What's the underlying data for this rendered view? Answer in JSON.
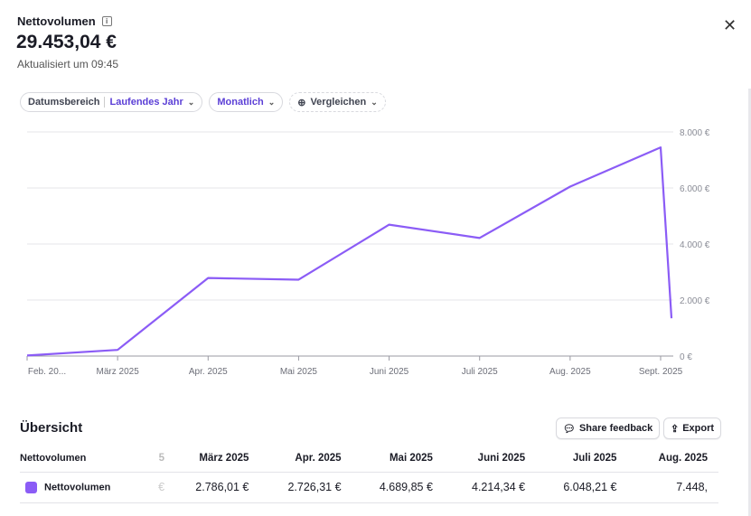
{
  "header": {
    "title": "Nettovolumen",
    "amount": "29.453,04 €",
    "updated": "Aktualisiert um 09:45",
    "close": "✕"
  },
  "filters": {
    "date_label": "Datumsbereich",
    "date_value": "Laufendes Jahr",
    "interval": "Monatlich",
    "compare": "Vergleichen"
  },
  "colors": {
    "accent": "#5b3fd6",
    "line": "#8b5cf6"
  },
  "chart_data": {
    "type": "line",
    "x_labels": [
      "Feb. 20...",
      "März 2025",
      "Apr. 2025",
      "Mai 2025",
      "Juni 2025",
      "Juli 2025",
      "Aug. 2025",
      "Sept. 2025"
    ],
    "y_ticks": [
      "0 €",
      "2.000 €",
      "4.000 €",
      "6.000 €",
      "8.000 €"
    ],
    "ylim": [
      0,
      8000
    ],
    "series": [
      {
        "name": "Nettovolumen",
        "x": [
          0,
          1,
          2,
          3,
          4,
          5,
          6,
          7,
          7.12
        ],
        "values": [
          20,
          220,
          2786.01,
          2726.31,
          4689.85,
          4214.34,
          6048.21,
          7448,
          1350
        ]
      }
    ],
    "grid": true
  },
  "overview": {
    "title": "Übersicht",
    "share": "Share feedback",
    "export": "Export",
    "columns": [
      "Nettovolumen",
      "5",
      "März 2025",
      "Apr. 2025",
      "Mai 2025",
      "Juni 2025",
      "Juli 2025",
      "Aug. 2025"
    ],
    "row": {
      "label": "Nettovolumen",
      "values": [
        "€",
        "2.786,01 €",
        "2.726,31 €",
        "4.689,85 €",
        "4.214,34 €",
        "6.048,21 €",
        "7.448,"
      ]
    }
  }
}
